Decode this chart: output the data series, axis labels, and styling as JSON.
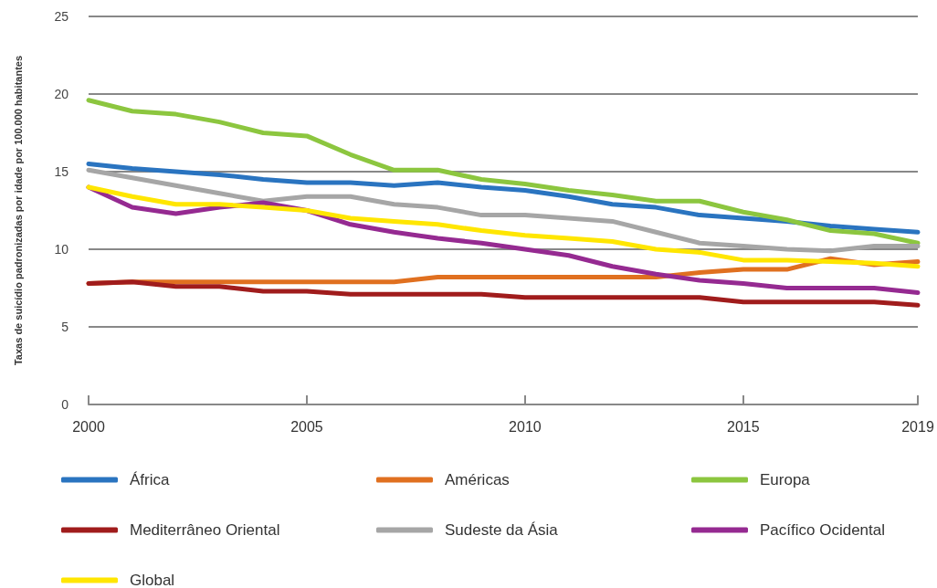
{
  "chart_data": {
    "type": "line",
    "ylabel": "Taxas de suicídio padronizadas por idade por 100.000 habitantes",
    "x": [
      2000,
      2001,
      2002,
      2003,
      2004,
      2005,
      2006,
      2007,
      2008,
      2009,
      2010,
      2011,
      2012,
      2013,
      2014,
      2015,
      2016,
      2017,
      2018,
      2019
    ],
    "xlim": [
      2000,
      2019
    ],
    "xticks": [
      2000,
      2005,
      2010,
      2015,
      2019
    ],
    "ylim": [
      0,
      25
    ],
    "yticks": [
      0,
      5,
      10,
      15,
      20,
      25
    ],
    "grid": "y",
    "legend": "bottom",
    "marker": "none",
    "line_style": "solid",
    "series": [
      {
        "name": "África",
        "color": "#2a74c0",
        "values": [
          15.5,
          15.2,
          15.0,
          14.8,
          14.5,
          14.3,
          14.3,
          14.1,
          14.3,
          14.0,
          13.8,
          13.4,
          12.9,
          12.7,
          12.2,
          12.0,
          11.8,
          11.5,
          11.3,
          11.1
        ]
      },
      {
        "name": "Américas",
        "color": "#e07020",
        "values": [
          7.8,
          7.9,
          7.9,
          7.9,
          7.9,
          7.9,
          7.9,
          7.9,
          8.2,
          8.2,
          8.2,
          8.2,
          8.2,
          8.2,
          8.5,
          8.7,
          8.7,
          9.4,
          9.0,
          9.2
        ]
      },
      {
        "name": "Europa",
        "color": "#8cc63f",
        "values": [
          19.6,
          18.9,
          18.7,
          18.2,
          17.5,
          17.3,
          16.1,
          15.1,
          15.1,
          14.5,
          14.2,
          13.8,
          13.5,
          13.1,
          13.1,
          12.4,
          11.9,
          11.2,
          11.0,
          10.4
        ]
      },
      {
        "name": "Mediterrâneo Oriental",
        "color": "#a01c1c",
        "values": [
          7.8,
          7.9,
          7.6,
          7.6,
          7.3,
          7.3,
          7.1,
          7.1,
          7.1,
          7.1,
          6.9,
          6.9,
          6.9,
          6.9,
          6.9,
          6.6,
          6.6,
          6.6,
          6.6,
          6.4
        ]
      },
      {
        "name": "Sudeste da Ásia",
        "color": "#a6a6a6",
        "values": [
          15.1,
          14.6,
          14.1,
          13.6,
          13.1,
          13.4,
          13.4,
          12.9,
          12.7,
          12.2,
          12.2,
          12.0,
          11.8,
          11.1,
          10.4,
          10.2,
          10.0,
          9.9,
          10.2,
          10.2
        ]
      },
      {
        "name": "Pacífico Ocidental",
        "color": "#952a91",
        "values": [
          14.0,
          12.7,
          12.3,
          12.7,
          13.0,
          12.5,
          11.6,
          11.1,
          10.7,
          10.4,
          10.0,
          9.6,
          8.9,
          8.4,
          8.0,
          7.8,
          7.5,
          7.5,
          7.5,
          7.2
        ]
      },
      {
        "name": "Global",
        "color": "#ffe600",
        "values": [
          14.0,
          13.4,
          12.9,
          12.9,
          12.7,
          12.5,
          12.0,
          11.8,
          11.6,
          11.2,
          10.9,
          10.7,
          10.5,
          10.0,
          9.8,
          9.3,
          9.3,
          9.2,
          9.1,
          8.9
        ]
      }
    ]
  }
}
